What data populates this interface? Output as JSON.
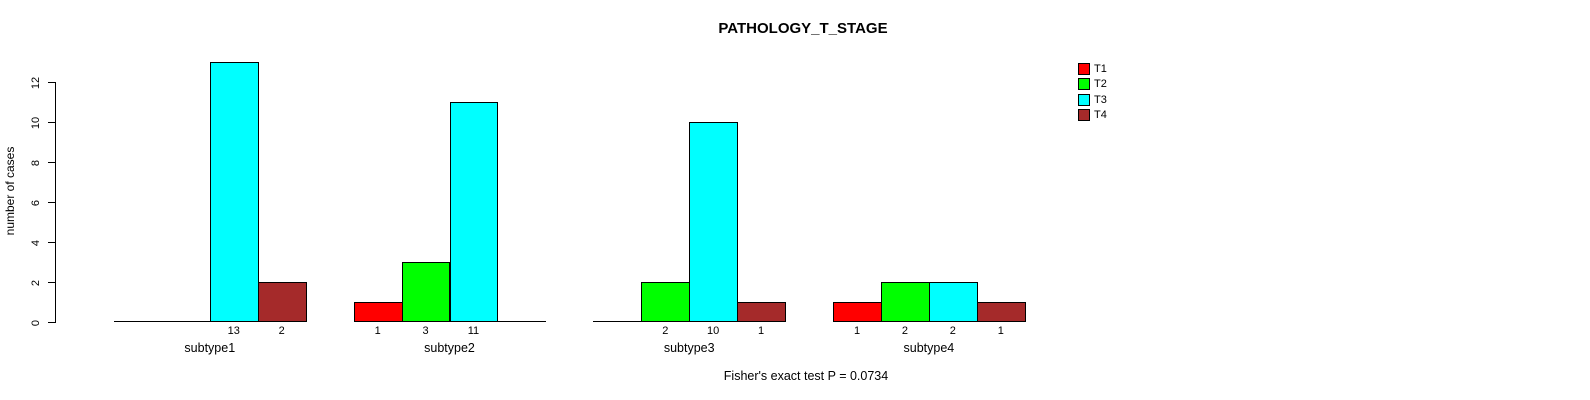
{
  "chart_data": {
    "type": "bar",
    "title": "PATHOLOGY_T_STAGE",
    "ylabel": "number of cases",
    "xlabel": "",
    "categories": [
      "subtype1",
      "subtype2",
      "subtype3",
      "subtype4"
    ],
    "series": [
      {
        "name": "T1",
        "color": "#FF0000",
        "values": [
          0,
          1,
          0,
          1
        ]
      },
      {
        "name": "T2",
        "color": "#00FF00",
        "values": [
          0,
          3,
          2,
          2
        ]
      },
      {
        "name": "T3",
        "color": "#00FFFF",
        "values": [
          13,
          11,
          10,
          2
        ]
      },
      {
        "name": "T4",
        "color": "#A52A2A",
        "values": [
          2,
          0,
          1,
          1
        ]
      }
    ],
    "yticks": [
      0,
      2,
      4,
      6,
      8,
      10,
      12
    ],
    "ylim": [
      0,
      13
    ],
    "grid": false,
    "legend_position": "top-right",
    "bar_value_labels": "shown under each non-zero bar",
    "annotation": "Fisher's exact test P = 0.0734"
  }
}
